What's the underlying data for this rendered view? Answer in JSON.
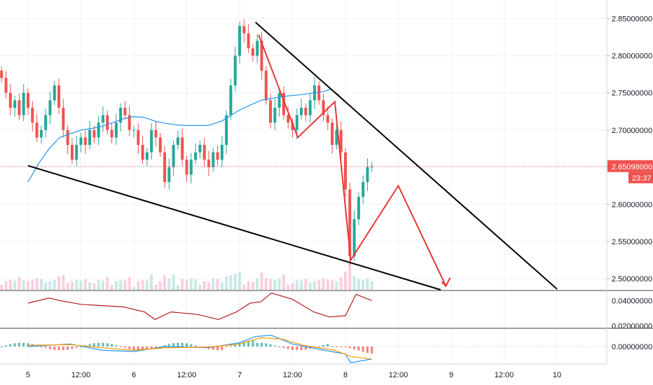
{
  "chart_data": [
    {
      "type": "candlestick",
      "pane": "price",
      "x_labels": [
        "5",
        "12:00",
        "6",
        "12:00",
        "7",
        "12:00",
        "8",
        "12:00",
        "9",
        "12:00",
        "10"
      ],
      "y_ticks": [
        "2.85000000",
        "2.80000000",
        "2.75000000",
        "2.70000000",
        "2.65000000",
        "2.60000000",
        "2.55000000",
        "2.50000000"
      ],
      "ylim": [
        2.485,
        2.875
      ],
      "last_price": {
        "label": "2.65098000",
        "countdown": "23:37",
        "value": 2.65098
      },
      "colors": {
        "up": "#26a69a",
        "down": "#ef5350",
        "ma": "#2196f3",
        "pattern": "#e53935",
        "trendline": "#000000",
        "last_price": "#ef5350"
      },
      "candles_close": [
        2.77,
        2.75,
        2.73,
        2.74,
        2.72,
        2.75,
        2.73,
        2.71,
        2.69,
        2.7,
        2.72,
        2.74,
        2.76,
        2.73,
        2.7,
        2.68,
        2.66,
        2.68,
        2.69,
        2.68,
        2.7,
        2.69,
        2.71,
        2.72,
        2.7,
        2.69,
        2.71,
        2.73,
        2.72,
        2.7,
        2.7,
        2.68,
        2.66,
        2.67,
        2.7,
        2.69,
        2.67,
        2.63,
        2.65,
        2.68,
        2.69,
        2.66,
        2.64,
        2.66,
        2.67,
        2.68,
        2.66,
        2.65,
        2.67,
        2.66,
        2.68,
        2.72,
        2.76,
        2.8,
        2.84,
        2.83,
        2.81,
        2.8,
        2.82,
        2.78,
        2.74,
        2.71,
        2.73,
        2.75,
        2.72,
        2.71,
        2.7,
        2.72,
        2.73,
        2.72,
        2.74,
        2.76,
        2.74,
        2.72,
        2.71,
        2.68,
        2.7,
        2.67,
        2.62,
        2.53,
        2.58,
        2.61,
        2.63,
        2.65,
        2.651
      ],
      "moving_average_points": [
        [
          0.0,
          2.63
        ],
        [
          0.1,
          2.655
        ],
        [
          0.2,
          2.675
        ],
        [
          0.3,
          2.69
        ],
        [
          0.4,
          2.695
        ],
        [
          0.5,
          2.7
        ],
        [
          0.6,
          2.702
        ],
        [
          0.7,
          2.705
        ],
        [
          0.8,
          2.71
        ],
        [
          0.9,
          2.715
        ],
        [
          1.0,
          2.718
        ],
        [
          1.1,
          2.717
        ],
        [
          1.2,
          2.712
        ],
        [
          1.3,
          2.709
        ],
        [
          1.4,
          2.707
        ],
        [
          1.5,
          2.706
        ],
        [
          1.7,
          2.706
        ],
        [
          1.83,
          2.712
        ],
        [
          2.0,
          2.727
        ],
        [
          2.2,
          2.74
        ],
        [
          2.4,
          2.745
        ],
        [
          2.6,
          2.748
        ],
        [
          2.8,
          2.752
        ],
        [
          2.86,
          2.755
        ],
        [
          2.93,
          2.748
        ],
        [
          3.0,
          2.738
        ]
      ],
      "red_pattern_path": [
        [
          2.18,
          2.828
        ],
        [
          2.55,
          2.69
        ],
        [
          2.9,
          2.738
        ],
        [
          3.05,
          2.525
        ],
        [
          3.5,
          2.625
        ],
        [
          3.95,
          2.49
        ]
      ],
      "red_arrow_tip": [
        3.95,
        2.49
      ],
      "trendline_upper": [
        [
          2.15,
          2.845
        ],
        [
          5.0,
          2.486
        ]
      ],
      "trendline_lower": [
        [
          0.0,
          2.652
        ],
        [
          3.9,
          2.485
        ]
      ]
    },
    {
      "type": "line",
      "pane": "oscillator",
      "y_ticks": [
        "0.04000000",
        "0.02000000"
      ],
      "ylim": [
        0.018,
        0.048
      ],
      "color": "#b71c1c",
      "points": [
        [
          0.0,
          0.038
        ],
        [
          0.2,
          0.042
        ],
        [
          0.3,
          0.04
        ],
        [
          0.5,
          0.037
        ],
        [
          0.7,
          0.036
        ],
        [
          0.9,
          0.035
        ],
        [
          1.1,
          0.031
        ],
        [
          1.2,
          0.025
        ],
        [
          1.35,
          0.031
        ],
        [
          1.6,
          0.029
        ],
        [
          1.8,
          0.025
        ],
        [
          1.97,
          0.031
        ],
        [
          2.1,
          0.038
        ],
        [
          2.2,
          0.039
        ],
        [
          2.3,
          0.046
        ],
        [
          2.5,
          0.041
        ],
        [
          2.7,
          0.031
        ],
        [
          2.85,
          0.027
        ],
        [
          3.0,
          0.028
        ],
        [
          3.1,
          0.045
        ],
        [
          3.25,
          0.04
        ]
      ]
    },
    {
      "type": "line",
      "pane": "macd",
      "y_ticks": [
        "0.00000000"
      ],
      "ylim": [
        -0.028,
        0.028
      ],
      "colors": {
        "macd": "#2196f3",
        "signal": "#ff9800",
        "hist_up": "#26a69a",
        "hist_down": "#ef5350"
      },
      "macd_points": [
        [
          0.0,
          0.0
        ],
        [
          0.4,
          0.004
        ],
        [
          0.7,
          -0.006
        ],
        [
          1.0,
          -0.008
        ],
        [
          1.3,
          0.0
        ],
        [
          1.7,
          -0.002
        ],
        [
          2.0,
          0.006
        ],
        [
          2.15,
          0.016
        ],
        [
          2.3,
          0.018
        ],
        [
          2.5,
          0.004
        ],
        [
          2.8,
          -0.006
        ],
        [
          3.0,
          -0.012
        ],
        [
          3.05,
          -0.026
        ],
        [
          3.25,
          -0.02
        ]
      ],
      "signal_points": [
        [
          0.0,
          0.002
        ],
        [
          0.4,
          0.003
        ],
        [
          0.7,
          -0.002
        ],
        [
          1.0,
          -0.006
        ],
        [
          1.3,
          -0.002
        ],
        [
          1.7,
          -0.001
        ],
        [
          2.0,
          0.004
        ],
        [
          2.2,
          0.014
        ],
        [
          2.4,
          0.012
        ],
        [
          2.6,
          0.002
        ],
        [
          2.9,
          -0.006
        ],
        [
          3.05,
          -0.016
        ],
        [
          3.25,
          -0.02
        ]
      ]
    }
  ]
}
